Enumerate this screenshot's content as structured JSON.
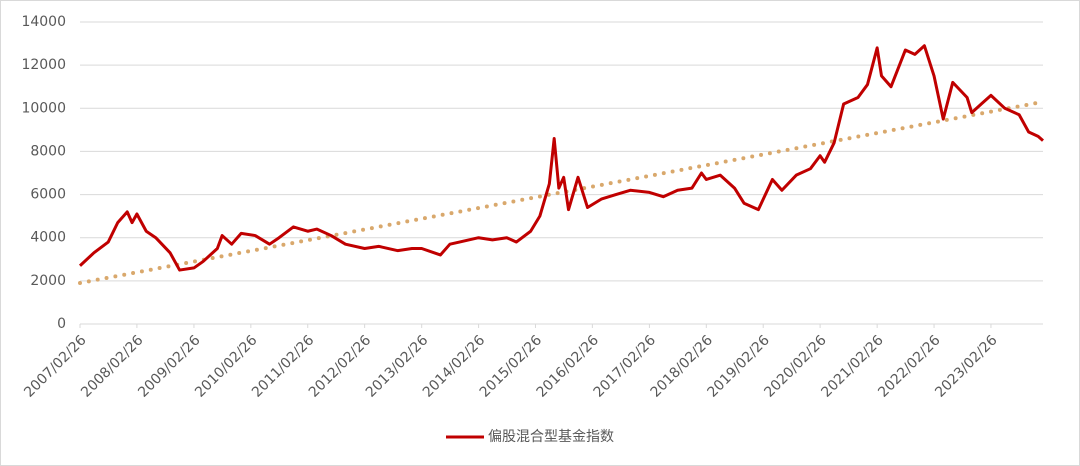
{
  "chart_data": {
    "type": "line",
    "x": [
      "2007/02/26",
      "2007/05/26",
      "2007/08/26",
      "2007/10/26",
      "2007/12/26",
      "2008/01/26",
      "2008/02/26",
      "2008/04/26",
      "2008/06/26",
      "2008/09/26",
      "2008/11/26",
      "2009/02/26",
      "2009/04/26",
      "2009/07/26",
      "2009/08/26",
      "2009/10/26",
      "2009/12/26",
      "2010/03/26",
      "2010/06/26",
      "2010/08/26",
      "2010/11/26",
      "2011/02/26",
      "2011/04/26",
      "2011/07/26",
      "2011/10/26",
      "2012/02/26",
      "2012/05/26",
      "2012/09/26",
      "2012/12/26",
      "2013/02/26",
      "2013/06/26",
      "2013/08/26",
      "2013/10/26",
      "2014/02/26",
      "2014/05/26",
      "2014/08/26",
      "2014/10/26",
      "2015/01/26",
      "2015/03/26",
      "2015/05/26",
      "2015/06/26",
      "2015/07/26",
      "2015/08/26",
      "2015/09/26",
      "2015/11/26",
      "2016/01/26",
      "2016/04/26",
      "2016/07/26",
      "2016/10/26",
      "2017/02/26",
      "2017/05/26",
      "2017/08/26",
      "2017/11/26",
      "2018/01/26",
      "2018/02/26",
      "2018/05/26",
      "2018/08/26",
      "2018/10/26",
      "2019/01/26",
      "2019/04/26",
      "2019/06/26",
      "2019/09/26",
      "2019/12/26",
      "2020/02/26",
      "2020/03/26",
      "2020/05/26",
      "2020/07/26",
      "2020/10/26",
      "2020/12/26",
      "2021/02/26",
      "2021/03/26",
      "2021/05/26",
      "2021/08/26",
      "2021/10/26",
      "2021/12/26",
      "2022/02/26",
      "2022/04/26",
      "2022/06/26",
      "2022/09/26",
      "2022/10/26",
      "2022/12/26",
      "2023/02/26",
      "2023/05/26",
      "2023/08/26",
      "2023/10/26",
      "2023/12/26",
      "2024/01/26"
    ],
    "series": [
      {
        "name": "偏股混合型基金指数",
        "color": "#c00000",
        "values": [
          2700,
          3300,
          3800,
          4700,
          5200,
          4700,
          5100,
          4300,
          4000,
          3300,
          2500,
          2600,
          2900,
          3500,
          4100,
          3700,
          4200,
          4100,
          3700,
          4000,
          4500,
          4300,
          4400,
          4100,
          3700,
          3500,
          3600,
          3400,
          3500,
          3500,
          3200,
          3700,
          3800,
          4000,
          3900,
          4000,
          3800,
          4300,
          5000,
          6500,
          8600,
          6300,
          6800,
          5300,
          6800,
          5400,
          5800,
          6000,
          6200,
          6100,
          5900,
          6200,
          6300,
          7000,
          6700,
          6900,
          6300,
          5600,
          5300,
          6700,
          6200,
          6900,
          7200,
          7800,
          7500,
          8400,
          10200,
          10500,
          11100,
          12800,
          11500,
          11000,
          12700,
          12500,
          12900,
          11500,
          9500,
          11200,
          10500,
          9800,
          10200,
          10600,
          10000,
          9700,
          8900,
          8700,
          8500
        ]
      }
    ],
    "trendline": {
      "color": "#d9a86c",
      "x": [
        "2007/02/26",
        "2024/01/26"
      ],
      "values": [
        1900,
        10300
      ]
    },
    "xlim": [
      "2007/02/26",
      "2024/01/26"
    ],
    "xticks": [
      "2007/02/26",
      "2008/02/26",
      "2009/02/26",
      "2010/02/26",
      "2011/02/26",
      "2012/02/26",
      "2013/02/26",
      "2014/02/26",
      "2015/02/26",
      "2016/02/26",
      "2017/02/26",
      "2018/02/26",
      "2019/02/26",
      "2020/02/26",
      "2021/02/26",
      "2022/02/26",
      "2023/02/26"
    ],
    "ylim": [
      0,
      14000
    ],
    "yticks": [
      0,
      2000,
      4000,
      6000,
      8000,
      10000,
      12000,
      14000
    ],
    "grid": true,
    "legend": "bottom"
  }
}
